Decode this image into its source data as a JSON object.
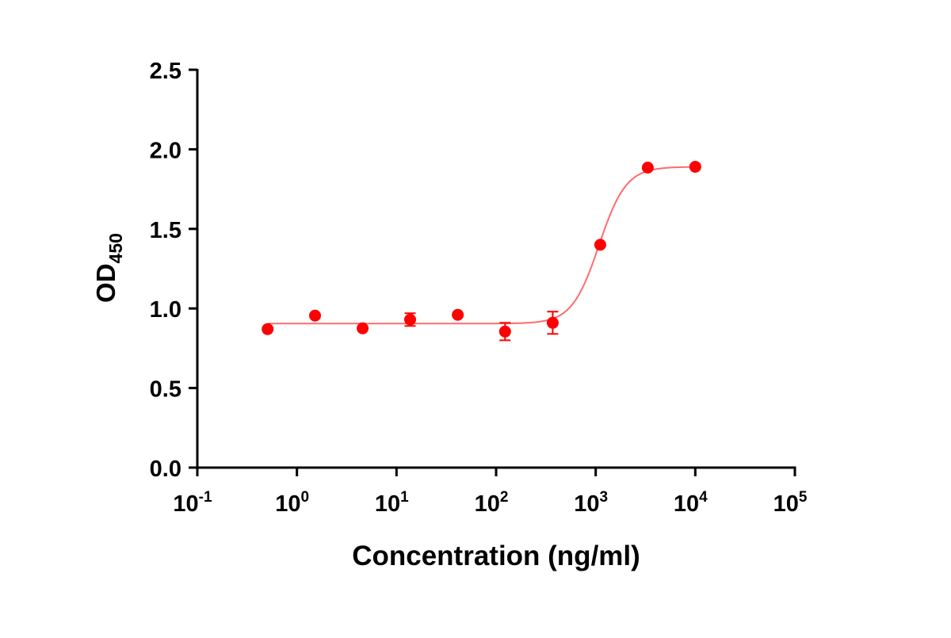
{
  "chart_data": {
    "type": "scatter",
    "xlabel": "Concentration (ng/ml)",
    "ylabel_main": "OD",
    "ylabel_sub": "450",
    "x_scale": "log10",
    "xlim": [
      0.1,
      100000
    ],
    "ylim": [
      0,
      2.5
    ],
    "x_ticks": [
      {
        "base": "10",
        "exp": "-1",
        "value": 0.1
      },
      {
        "base": "10",
        "exp": "0",
        "value": 1
      },
      {
        "base": "10",
        "exp": "1",
        "value": 10
      },
      {
        "base": "10",
        "exp": "2",
        "value": 100
      },
      {
        "base": "10",
        "exp": "3",
        "value": 1000
      },
      {
        "base": "10",
        "exp": "4",
        "value": 10000
      },
      {
        "base": "10",
        "exp": "5",
        "value": 100000
      }
    ],
    "y_ticks": [
      "0.0",
      "0.5",
      "1.0",
      "1.5",
      "2.0",
      "2.5"
    ],
    "grid": false,
    "color": "#ff0000",
    "curve_color": "#ff6b6b",
    "points": [
      {
        "x": 0.508,
        "y": 0.87,
        "err": 0
      },
      {
        "x": 1.52,
        "y": 0.955,
        "err": 0
      },
      {
        "x": 4.57,
        "y": 0.875,
        "err": 0
      },
      {
        "x": 13.7,
        "y": 0.93,
        "err": 0.04
      },
      {
        "x": 41.2,
        "y": 0.96,
        "err": 0
      },
      {
        "x": 123,
        "y": 0.855,
        "err": 0.055
      },
      {
        "x": 370,
        "y": 0.91,
        "err": 0.07
      },
      {
        "x": 1111,
        "y": 1.4,
        "err": 0
      },
      {
        "x": 3333,
        "y": 1.885,
        "err": 0
      },
      {
        "x": 10000,
        "y": 1.89,
        "err": 0
      }
    ],
    "fit": {
      "model": "4PL",
      "bottom": 0.905,
      "top": 1.89,
      "ec50": 1080,
      "hill": 3.2
    }
  }
}
